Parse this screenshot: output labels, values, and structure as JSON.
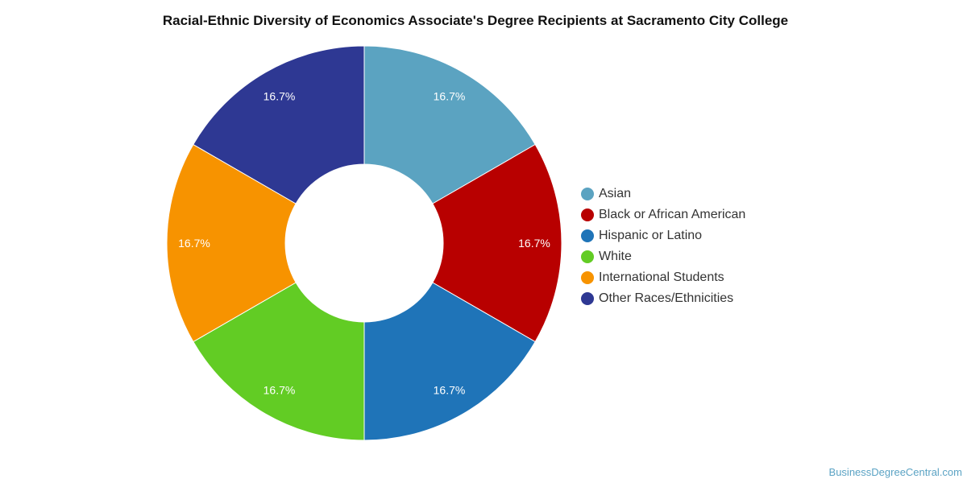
{
  "chart_data": {
    "type": "pie",
    "title": "Racial-Ethnic Diversity of Economics Associate's Degree Recipients at Sacramento City College",
    "donut": true,
    "legend_position": "right",
    "slices": [
      {
        "label": "Asian",
        "value": 16.7,
        "display": "16.7%",
        "color": "#5ba3c1"
      },
      {
        "label": "Black or African American",
        "value": 16.7,
        "display": "16.7%",
        "color": "#b80000"
      },
      {
        "label": "Hispanic or Latino",
        "value": 16.7,
        "display": "16.7%",
        "color": "#1f74b8"
      },
      {
        "label": "White",
        "value": 16.7,
        "display": "16.7%",
        "color": "#62cc24"
      },
      {
        "label": "International Students",
        "value": 16.7,
        "display": "16.7%",
        "color": "#f79300"
      },
      {
        "label": "Other Races/Ethnicities",
        "value": 16.7,
        "display": "16.7%",
        "color": "#2e3893"
      }
    ]
  },
  "source": "BusinessDegreeCentral.com"
}
